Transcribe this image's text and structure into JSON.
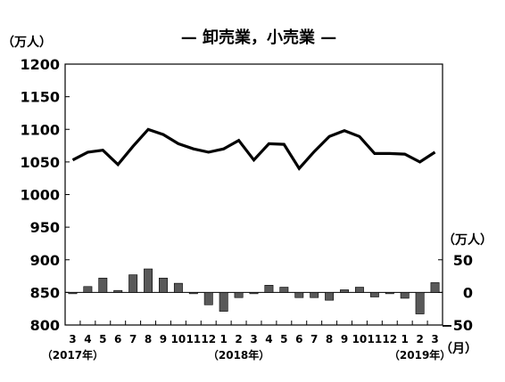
{
  "chart_data": {
    "type": "line",
    "title": "— 卸売業，小売業 —",
    "left_unit": "（万人）",
    "right_unit": "（万人）",
    "month_unit": "（月）",
    "left_axis": {
      "ylim": [
        800,
        1200
      ],
      "ticks": [
        "800",
        "850",
        "900",
        "950",
        "1000",
        "1050",
        "1100",
        "1150",
        "1200"
      ]
    },
    "right_axis": {
      "ylim": [
        -50,
        50
      ],
      "ticks": [
        "50",
        "0",
        "−50"
      ]
    },
    "grid": false,
    "categories": [
      "3",
      "4",
      "5",
      "6",
      "7",
      "8",
      "9",
      "10",
      "11",
      "12",
      "1",
      "2",
      "3",
      "4",
      "5",
      "6",
      "7",
      "8",
      "9",
      "10",
      "11",
      "12",
      "1",
      "2",
      "3"
    ],
    "year_labels": [
      {
        "at_index": 0,
        "text": "（2017年）"
      },
      {
        "at_index": 11,
        "text": "（2018年）"
      },
      {
        "at_index": 23,
        "text": "（2019年）"
      }
    ],
    "series": [
      {
        "type": "line",
        "axis": "left",
        "color": "#000000",
        "values": [
          1053,
          1065,
          1068,
          1046,
          1074,
          1100,
          1092,
          1078,
          1070,
          1065,
          1070,
          1083,
          1053,
          1078,
          1077,
          1040,
          1066,
          1089,
          1098,
          1089,
          1063,
          1063,
          1062,
          1050,
          1065
        ]
      },
      {
        "type": "bar",
        "axis": "right",
        "color": "#595959",
        "values": [
          -2,
          9,
          22,
          3,
          27,
          36,
          22,
          14,
          -1,
          -19,
          -29,
          -8,
          -1,
          11,
          8,
          -8,
          -8,
          -12,
          4,
          8,
          -7,
          -2,
          -9,
          -33,
          15
        ]
      }
    ]
  }
}
